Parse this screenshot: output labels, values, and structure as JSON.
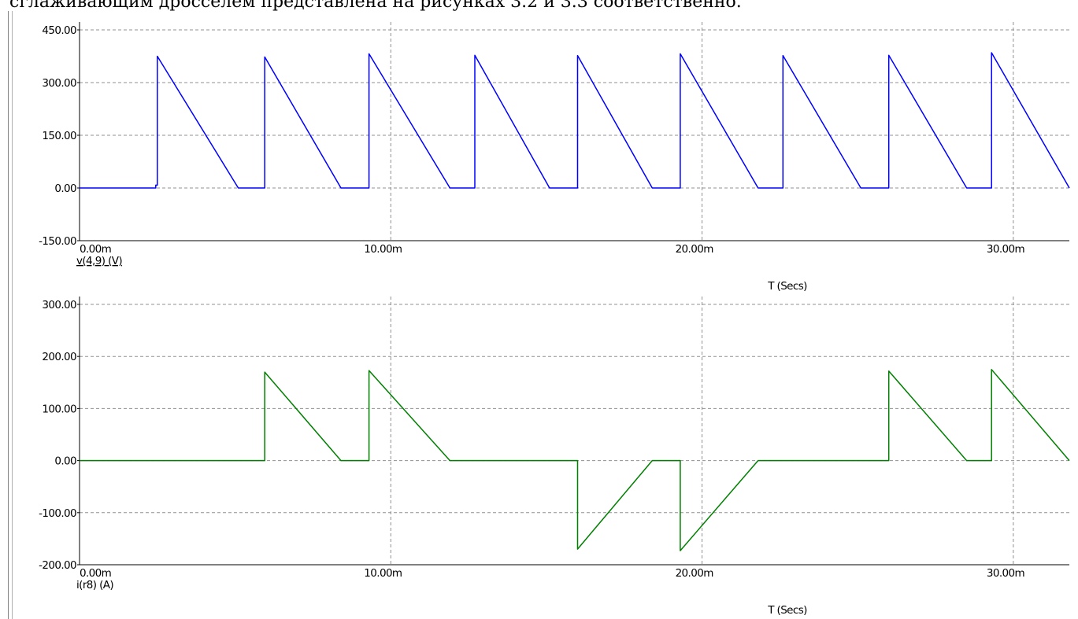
{
  "document": {
    "caption_fragment": "сглаживающим дросселем представлена на рисунках 3.2 и 3.3 соответственно."
  },
  "colors": {
    "voltage_trace": "#0000ff",
    "current_trace": "#008000",
    "grid": "#909090",
    "axis": "#000000"
  },
  "chart_data": [
    {
      "type": "line",
      "trace_label": "v(4,9) (V)",
      "xlabel": "T (Secs)",
      "xlim": [
        0,
        0.0318
      ],
      "ylim": [
        -150,
        450
      ],
      "y_ticks": [
        450,
        300,
        150,
        0,
        -150
      ],
      "y_tick_labels": [
        "450.00",
        "300.00",
        "150.00",
        "0.00",
        "-150.00"
      ],
      "x_ticks": [
        0,
        0.01,
        0.02,
        0.03
      ],
      "x_tick_labels": [
        "0.00m",
        "10.00m",
        "20.00m",
        "30.00m"
      ],
      "grid": true,
      "series": [
        {
          "label": "v(4,9) (V)",
          "x": [
            0,
            0.00245,
            0.00245,
            0.0025,
            0.0025,
            0.0051,
            0.00595,
            0.00595,
            0.00595,
            0.00595,
            0.0084,
            0.0093,
            0.0093,
            0.0093,
            0.0093,
            0.0119,
            0.0127,
            0.0127,
            0.0127,
            0.0127,
            0.0151,
            0.016,
            0.016,
            0.016,
            0.016,
            0.0184,
            0.0193,
            0.0193,
            0.0193,
            0.0193,
            0.0218,
            0.0226,
            0.0226,
            0.0226,
            0.0226,
            0.0251,
            0.026,
            0.026,
            0.026,
            0.026,
            0.0285,
            0.0293,
            0.0293,
            0.0293,
            0.0293,
            0.0318
          ],
          "y": [
            0,
            0,
            8,
            8,
            375,
            0,
            0,
            8,
            8,
            373,
            0,
            0,
            8,
            8,
            382,
            0,
            0,
            8,
            8,
            378,
            0,
            0,
            8,
            8,
            377,
            0,
            0,
            8,
            8,
            382,
            0,
            0,
            8,
            8,
            377,
            0,
            0,
            8,
            8,
            378,
            0,
            0,
            8,
            8,
            385,
            0
          ]
        }
      ]
    },
    {
      "type": "line",
      "trace_label": "i(r8) (A)",
      "xlabel": "T (Secs)",
      "xlim": [
        0,
        0.0318
      ],
      "ylim": [
        -200,
        300
      ],
      "y_ticks": [
        300,
        200,
        100,
        0,
        -100,
        -200
      ],
      "y_tick_labels": [
        "300.00",
        "200.00",
        "100.00",
        "0.00",
        "-100.00",
        "-200.00"
      ],
      "x_ticks": [
        0,
        0.01,
        0.02,
        0.03
      ],
      "x_tick_labels": [
        "0.00m",
        "10.00m",
        "20.00m",
        "30.00m"
      ],
      "grid": true,
      "series": [
        {
          "label": "i(r8) (A)",
          "x": [
            0,
            0.00595,
            0.00595,
            0.0084,
            0.0093,
            0.0093,
            0.0119,
            0.016,
            0.016,
            0.0184,
            0.0193,
            0.0193,
            0.0218,
            0.026,
            0.026,
            0.0285,
            0.0293,
            0.0293,
            0.0318
          ],
          "y": [
            0,
            0,
            170,
            0,
            0,
            173,
            0,
            0,
            -170,
            0,
            0,
            -173,
            0,
            0,
            172,
            0,
            0,
            175,
            0
          ]
        }
      ]
    }
  ]
}
